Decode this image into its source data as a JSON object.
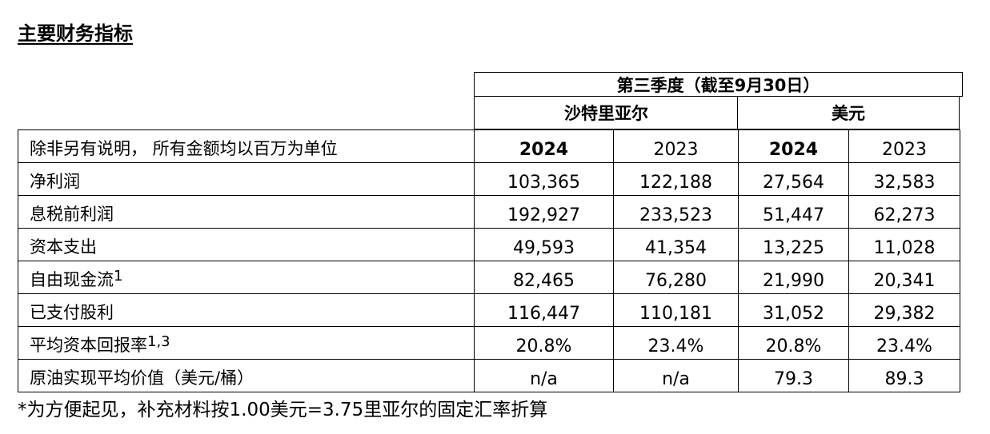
{
  "title": "主要财务指标",
  "header": {
    "period": "第三季度（截至9月30日）",
    "currency_riyal": "沙特里亚尔",
    "currency_usd": "美元",
    "unit_note": "除非另有说明， 所有金额均以百万为单位",
    "years": [
      "2024",
      "2023",
      "2024",
      "2023"
    ]
  },
  "rows": [
    {
      "label": "净利润",
      "sup": "",
      "values": [
        "103,365",
        "122,188",
        "27,564",
        "32,583"
      ]
    },
    {
      "label": "息税前利润",
      "sup": "",
      "values": [
        "192,927",
        "233,523",
        "51,447",
        "62,273"
      ]
    },
    {
      "label": "资本支出",
      "sup": "",
      "values": [
        "49,593",
        "41,354",
        "13,225",
        "11,028"
      ]
    },
    {
      "label": "自由现金流",
      "sup": "1",
      "values": [
        "82,465",
        "76,280",
        "21,990",
        "20,341"
      ]
    },
    {
      "label": "已支付股利",
      "sup": "",
      "values": [
        "116,447",
        "110,181",
        "31,052",
        "29,382"
      ]
    },
    {
      "label": "平均资本回报率",
      "sup": "1,3",
      "values": [
        "20.8%",
        "23.4%",
        "20.8%",
        "23.4%"
      ]
    },
    {
      "label": "原油实现平均价值（美元/桶）",
      "sup": "",
      "values": [
        "n/a",
        "n/a",
        "79.3",
        "89.3"
      ]
    }
  ],
  "footnote": "*为方便起见，补充材料按1.00美元=3.75里亚尔的固定汇率折算"
}
